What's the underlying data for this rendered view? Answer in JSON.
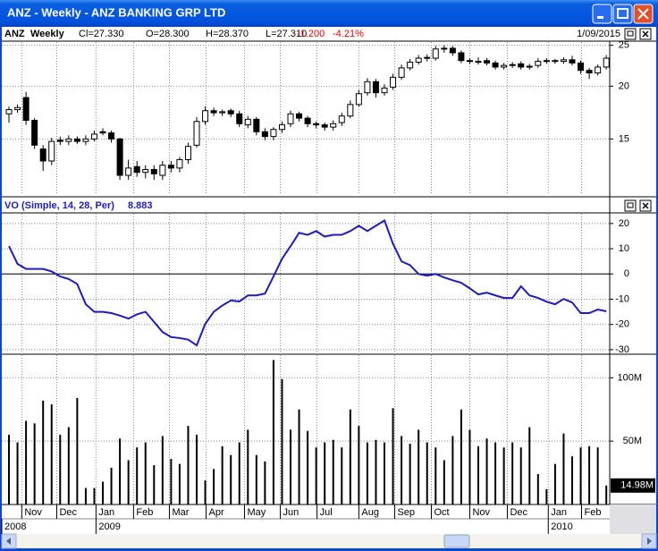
{
  "window": {
    "title": "ANZ - Weekly - ANZ BANKING GRP LTD"
  },
  "header": {
    "symbol": "ANZ",
    "period": "Weekly",
    "close": "Cl=27.330",
    "open": "O=28.300",
    "high": "H=28.370",
    "low": "L=27.310",
    "change": "-1.200",
    "change_pct": "-4.21%",
    "date": "1/09/2015"
  },
  "x_axis": {
    "categories": [
      null,
      null,
      null,
      null,
      null,
      null,
      null,
      null,
      null,
      null,
      null,
      null,
      null,
      null,
      null,
      null,
      null,
      null,
      null,
      null,
      null,
      null,
      null,
      null,
      null,
      null,
      null,
      null,
      null,
      null,
      null,
      null,
      null,
      null,
      null,
      null,
      null,
      null,
      null,
      null,
      null,
      null,
      null,
      null,
      null,
      null,
      null,
      null,
      null,
      null,
      null,
      null,
      null,
      null,
      null,
      null,
      null,
      null,
      null,
      null,
      null,
      null,
      null,
      null,
      null,
      null,
      null,
      null,
      null,
      null,
      null
    ],
    "xlim": [
      -0.84,
      70.4
    ],
    "xticks": [
      {
        "value": 1.5,
        "label": "Nov"
      },
      {
        "value": 5.6,
        "label": "Dec"
      },
      {
        "value": 10.2,
        "label": "Jan"
      },
      {
        "value": 14.6,
        "label": "Feb"
      },
      {
        "value": 18.8,
        "label": "Mar"
      },
      {
        "value": 23.1,
        "label": "Apr"
      },
      {
        "value": 27.6,
        "label": "May"
      },
      {
        "value": 31.8,
        "label": "Jun"
      },
      {
        "value": 36.1,
        "label": "Jul"
      },
      {
        "value": 41.0,
        "label": "Aug"
      },
      {
        "value": 45.2,
        "label": "Sep"
      },
      {
        "value": 49.5,
        "label": "Oct"
      },
      {
        "value": 54.0,
        "label": "Nov"
      },
      {
        "value": 58.4,
        "label": "Dec"
      },
      {
        "value": 63.2,
        "label": "Jan"
      },
      {
        "value": 67.1,
        "label": "Feb"
      }
    ],
    "year_ticks": [
      {
        "value": -0.84,
        "label": "2008"
      },
      {
        "value": 10.2,
        "label": "2009"
      },
      {
        "value": 63.2,
        "label": "2010"
      }
    ],
    "grid": true
  },
  "chart_data": [
    {
      "type": "candlestick",
      "log_scale": true,
      "grid": true,
      "up_color": "#ffffff",
      "down_color": "#000000",
      "ylim": [
        11.05,
        25.57
      ],
      "yticks": [
        25,
        20,
        15
      ],
      "open": [
        17.2,
        17.6,
        18.8,
        16.6,
        14.2,
        13.3,
        14.9,
        14.8,
        15.0,
        14.8,
        15.0,
        15.6,
        15.5,
        15.0,
        12.3,
        12.9,
        12.5,
        12.7,
        12.3,
        13.0,
        12.8,
        13.4,
        14.5,
        16.5,
        17.5,
        17.3,
        17.5,
        17.2,
        16.2,
        16.7,
        15.6,
        15.2,
        15.8,
        16.3,
        17.2,
        16.8,
        16.3,
        16.2,
        16.0,
        16.4,
        17.0,
        18.1,
        19.3,
        20.5,
        19.3,
        19.9,
        21.0,
        22.1,
        22.8,
        23.4,
        23.3,
        24.5,
        24.6,
        24.0,
        23.0,
        22.9,
        23.0,
        22.7,
        22.2,
        22.4,
        22.6,
        22.2,
        22.4,
        22.9,
        23.0,
        22.9,
        23.1,
        22.7,
        21.8,
        21.5,
        22.2
      ],
      "high": [
        17.9,
        18.1,
        19.4,
        16.8,
        14.5,
        15.1,
        15.2,
        15.3,
        15.2,
        15.3,
        15.7,
        15.9,
        15.7,
        15.1,
        13.4,
        13.3,
        13.0,
        13.0,
        13.3,
        13.3,
        13.6,
        14.7,
        16.9,
        17.9,
        17.8,
        17.6,
        17.7,
        17.5,
        17.0,
        16.9,
        15.9,
        16.0,
        16.5,
        17.5,
        17.4,
        17.0,
        16.5,
        16.4,
        16.6,
        17.3,
        18.5,
        19.6,
        20.9,
        20.8,
        20.2,
        21.4,
        22.5,
        23.2,
        23.7,
        23.8,
        24.9,
        25.0,
        24.9,
        24.3,
        23.3,
        23.4,
        23.3,
        23.0,
        22.7,
        22.8,
        22.9,
        22.6,
        23.3,
        23.3,
        23.2,
        23.4,
        23.6,
        23.0,
        22.1,
        22.5,
        23.7
      ],
      "low": [
        16.4,
        17.3,
        16.2,
        14.2,
        12.6,
        13.0,
        14.5,
        14.5,
        14.6,
        14.5,
        14.8,
        15.3,
        14.7,
        12.0,
        12.0,
        12.2,
        12.1,
        12.0,
        12.0,
        12.5,
        12.5,
        13.1,
        14.3,
        16.2,
        17.0,
        17.0,
        16.9,
        16.0,
        15.9,
        15.3,
        14.9,
        14.9,
        15.5,
        16.0,
        16.5,
        16.0,
        15.9,
        15.7,
        15.7,
        16.1,
        16.8,
        17.9,
        19.0,
        18.8,
        19.0,
        19.6,
        20.7,
        21.8,
        22.5,
        22.9,
        23.0,
        24.0,
        23.6,
        22.7,
        22.6,
        22.5,
        22.4,
        21.9,
        21.9,
        22.1,
        21.9,
        21.9,
        22.1,
        22.6,
        22.6,
        22.6,
        22.4,
        21.4,
        20.8,
        21.2,
        21.9
      ],
      "close": [
        17.6,
        17.8,
        16.6,
        14.5,
        13.3,
        14.8,
        14.8,
        15.0,
        14.8,
        15.0,
        15.4,
        15.5,
        15.0,
        12.3,
        12.8,
        12.5,
        12.7,
        12.4,
        13.0,
        12.8,
        13.4,
        14.4,
        16.5,
        17.5,
        17.3,
        17.4,
        17.2,
        16.3,
        16.7,
        15.6,
        15.2,
        15.8,
        16.2,
        17.2,
        16.8,
        16.3,
        16.2,
        16.0,
        16.3,
        17.0,
        18.1,
        19.2,
        20.5,
        19.3,
        19.8,
        21.0,
        22.1,
        22.8,
        23.3,
        23.3,
        24.5,
        24.6,
        24.0,
        23.0,
        22.9,
        22.9,
        22.7,
        22.2,
        22.4,
        22.5,
        22.2,
        22.3,
        22.9,
        23.0,
        22.9,
        23.1,
        22.7,
        21.8,
        21.5,
        22.2,
        23.3
      ]
    },
    {
      "type": "line",
      "title": "VO (Simple, 14, 28, Per)",
      "readout": "8.883",
      "grid": true,
      "zero_line": 0,
      "ylim": [
        -31.8,
        24.2
      ],
      "yticks": [
        20,
        10,
        0,
        -10,
        -20,
        -30
      ],
      "series": [
        {
          "name": "VO",
          "color": "#1c1cc0",
          "values": [
            11,
            4,
            2,
            2,
            2,
            1,
            -1,
            -2,
            -4,
            -12,
            -15,
            -15,
            -15.5,
            -16.5,
            -17.7,
            -16,
            -15,
            -19,
            -23,
            -25,
            -25.4,
            -26,
            -28.3,
            -19.8,
            -15,
            -12.5,
            -10.5,
            -10.9,
            -8.5,
            -8.5,
            -7.8,
            -1,
            6,
            11,
            16.3,
            15.5,
            17,
            14.8,
            15.5,
            15.5,
            17,
            19.1,
            17,
            19.1,
            21.2,
            12,
            5,
            3.5,
            0,
            -0.7,
            0,
            -1.4,
            -2.5,
            -3.5,
            -5.7,
            -8.1,
            -7.4,
            -8.5,
            -9.5,
            -9.5,
            -4.9,
            -8.5,
            -9.5,
            -11,
            -12,
            -9.9,
            -11.3,
            -15.5,
            -15.5,
            -14.1,
            -14.8
          ]
        }
      ]
    },
    {
      "type": "bar",
      "color": "#000000",
      "grid": true,
      "ylim": [
        0,
        118.6
      ],
      "yticks": [
        {
          "value": 100,
          "label": "100M"
        },
        {
          "value": 50,
          "label": "50M"
        }
      ],
      "values": [
        55,
        49,
        66,
        64,
        82,
        79,
        55,
        61,
        84,
        13,
        13,
        18,
        29,
        52,
        35,
        45,
        49,
        31,
        54,
        36,
        32,
        62,
        55,
        19,
        28,
        46,
        39,
        49,
        59,
        39,
        34,
        114,
        99,
        59,
        75,
        58,
        45,
        49,
        51,
        45,
        75,
        62,
        49,
        51,
        49,
        76,
        54,
        48,
        59,
        49,
        45,
        35,
        54,
        75,
        59,
        46,
        52,
        49,
        45,
        49,
        45,
        61,
        24,
        12,
        32,
        56,
        38,
        45,
        46,
        45,
        14.98
      ],
      "value_labels": [
        null,
        null,
        null,
        null,
        null,
        null,
        null,
        null,
        null,
        null,
        null,
        null,
        null,
        null,
        null,
        null,
        null,
        null,
        null,
        null,
        null,
        null,
        null,
        null,
        null,
        null,
        null,
        null,
        null,
        null,
        null,
        null,
        null,
        null,
        null,
        null,
        null,
        null,
        null,
        null,
        null,
        null,
        null,
        null,
        null,
        null,
        null,
        null,
        null,
        null,
        null,
        null,
        null,
        null,
        null,
        null,
        null,
        null,
        null,
        null,
        null,
        null,
        null,
        null,
        null,
        null,
        null,
        null,
        null,
        null,
        "14.98M"
      ]
    }
  ]
}
